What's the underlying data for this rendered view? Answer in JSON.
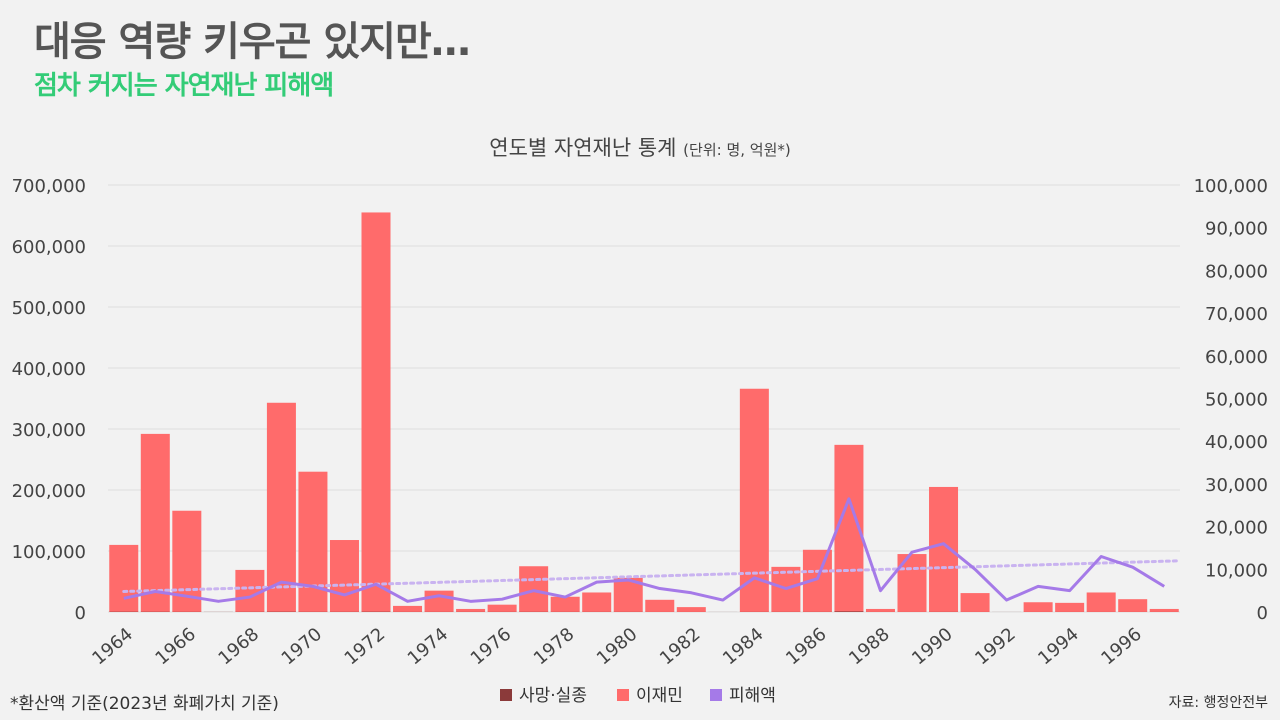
{
  "header": {
    "headline": "대응 역량 키우곤 있지만…",
    "subheadline": "점차 커지는 자연재난 피해액"
  },
  "footer": {
    "note": "*환산액 기준(2023년 화폐가치 기준)",
    "source": "자료: 행정안전부"
  },
  "colors": {
    "deaths": "#8b3a3a",
    "displaced": "#ff6b6b",
    "damage": "#a57ae8",
    "trend": "#c9b3f0",
    "grid": "#dddddd",
    "axis_text": "#444444"
  },
  "chart_data": {
    "type": "bar",
    "title": "연도별 자연재난 통계",
    "title_unit": "(단위: 명, 억원*)",
    "years": [
      1964,
      1965,
      1966,
      1967,
      1968,
      1969,
      1970,
      1971,
      1972,
      1973,
      1974,
      1975,
      1976,
      1977,
      1978,
      1979,
      1980,
      1981,
      1982,
      1983,
      1984,
      1985,
      1986,
      1987,
      1988,
      1989,
      1990,
      1991,
      1992,
      1993,
      1994,
      1995,
      1996,
      1997
    ],
    "x_tick_labels": [
      "1964",
      "1966",
      "1968",
      "1970",
      "1972",
      "1974",
      "1976",
      "1978",
      "1980",
      "1982",
      "1984",
      "1986",
      "1988",
      "1990",
      "1992",
      "1994",
      "1996"
    ],
    "left_axis": {
      "min": 0,
      "max": 700000,
      "ticks": [
        "0",
        "100,000",
        "200,000",
        "300,000",
        "400,000",
        "500,000",
        "600,000",
        "700,000"
      ]
    },
    "right_axis": {
      "min": 0,
      "max": 100000,
      "ticks": [
        "0",
        "10,000",
        "20,000",
        "30,000",
        "40,000",
        "50,000",
        "60,000",
        "70,000",
        "80,000",
        "90,000",
        "100,000"
      ]
    },
    "series": [
      {
        "name": "사망·실종",
        "type": "bar",
        "axis": "left",
        "values": [
          500,
          400,
          300,
          200,
          300,
          500,
          300,
          300,
          500,
          200,
          200,
          200,
          200,
          300,
          200,
          200,
          200,
          100,
          100,
          100,
          200,
          200,
          200,
          1000,
          100,
          100,
          200,
          100,
          100,
          100,
          100,
          100,
          100,
          100
        ]
      },
      {
        "name": "이재민",
        "type": "bar",
        "axis": "left",
        "values": [
          110000,
          292000,
          166000,
          0,
          69000,
          343000,
          230000,
          118000,
          655000,
          10000,
          35000,
          5000,
          12000,
          75000,
          25000,
          32000,
          56000,
          20000,
          8000,
          0,
          366000,
          74000,
          102000,
          274000,
          5000,
          95000,
          205000,
          31000,
          0,
          16000,
          15000,
          32000,
          21000,
          5000
        ]
      },
      {
        "name": "피해액",
        "type": "line",
        "axis": "right",
        "values": [
          3200,
          4800,
          3700,
          2500,
          3500,
          7000,
          6000,
          4000,
          6500,
          2500,
          3800,
          2500,
          3000,
          5000,
          3500,
          7000,
          7500,
          5500,
          4500,
          2800,
          8000,
          5500,
          7800,
          26500,
          5000,
          14000,
          16000,
          10000,
          2800,
          6000,
          5000,
          13000,
          10500,
          6000
        ]
      }
    ],
    "trendline": {
      "of": "피해액",
      "start": 4800,
      "end": 12000
    }
  }
}
